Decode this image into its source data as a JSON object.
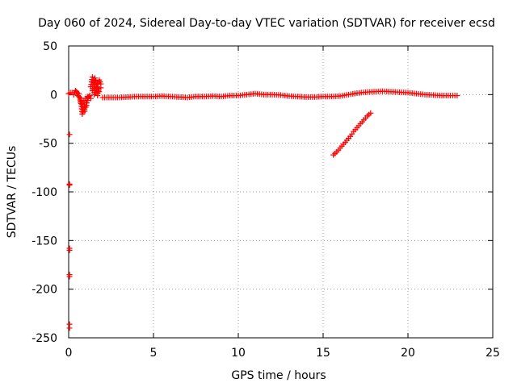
{
  "chart_data": {
    "type": "scatter",
    "title": "Day 060 of 2024, Sidereal Day-to-day VTEC variation (SDTVAR) for receiver ecsd",
    "xlabel": "GPS time / hours",
    "ylabel": "SDTVAR / TECUs",
    "xlim": [
      0,
      25
    ],
    "ylim": [
      -250,
      50
    ],
    "xticks": [
      0,
      5,
      10,
      15,
      20,
      25
    ],
    "yticks": [
      -250,
      -200,
      -150,
      -100,
      -50,
      0,
      50
    ],
    "xtick_labels": [
      "0",
      "5",
      "10",
      "15",
      "20",
      "25"
    ],
    "ytick_labels": [
      "-250",
      "-200",
      "-150",
      "-100",
      "-50",
      "0",
      "50"
    ],
    "grid": true,
    "marker": "+",
    "series_color": "#ff0000",
    "series": [
      {
        "name": "outliers",
        "points": [
          [
            0.05,
            -41
          ],
          [
            0.05,
            -92
          ],
          [
            0.05,
            -93
          ],
          [
            0.05,
            -158
          ],
          [
            0.05,
            -160
          ],
          [
            0.05,
            -185
          ],
          [
            0.05,
            -187
          ],
          [
            0.05,
            -236
          ],
          [
            0.05,
            -240
          ]
        ]
      },
      {
        "name": "early-scatter",
        "points": [
          [
            0.0,
            1
          ],
          [
            0.1,
            2
          ],
          [
            0.2,
            2
          ],
          [
            0.3,
            0
          ],
          [
            0.4,
            4
          ],
          [
            0.45,
            3
          ],
          [
            0.5,
            2
          ],
          [
            0.55,
            -1
          ],
          [
            0.6,
            1
          ],
          [
            0.65,
            -3
          ],
          [
            0.7,
            -8
          ],
          [
            0.75,
            -12
          ],
          [
            0.8,
            -20
          ],
          [
            0.85,
            -18
          ],
          [
            0.9,
            -15
          ],
          [
            0.95,
            -17
          ],
          [
            1.0,
            -13
          ],
          [
            1.05,
            -11
          ],
          [
            1.1,
            -6
          ],
          [
            1.15,
            -3
          ],
          [
            1.2,
            -2
          ],
          [
            1.25,
            -1
          ],
          [
            1.3,
            -4
          ],
          [
            1.4,
            18
          ],
          [
            1.45,
            15
          ],
          [
            1.5,
            12
          ],
          [
            1.55,
            17
          ],
          [
            1.6,
            14
          ],
          [
            1.65,
            10
          ],
          [
            1.7,
            8
          ],
          [
            1.75,
            6
          ],
          [
            1.8,
            3
          ],
          [
            1.5,
            6
          ],
          [
            1.6,
            2
          ],
          [
            1.7,
            12
          ],
          [
            1.8,
            15
          ],
          [
            1.9,
            11
          ],
          [
            1.9,
            7
          ],
          [
            1.5,
            0
          ],
          [
            1.4,
            4
          ],
          [
            1.3,
            8
          ],
          [
            1.7,
            -1
          ],
          [
            0.9,
            -6
          ],
          [
            1.0,
            -4
          ],
          [
            1.1,
            -2
          ],
          [
            0.8,
            -10
          ],
          [
            0.7,
            -4
          ],
          [
            0.6,
            -2
          ]
        ]
      },
      {
        "name": "main-track",
        "points": [
          [
            2.0,
            -3
          ],
          [
            2.5,
            -3
          ],
          [
            3.0,
            -3
          ],
          [
            3.5,
            -2.5
          ],
          [
            4.0,
            -2
          ],
          [
            4.5,
            -2
          ],
          [
            5.0,
            -2
          ],
          [
            5.5,
            -1.5
          ],
          [
            6.0,
            -2
          ],
          [
            6.5,
            -2.5
          ],
          [
            7.0,
            -3
          ],
          [
            7.5,
            -2
          ],
          [
            8.0,
            -2
          ],
          [
            8.5,
            -1.5
          ],
          [
            9.0,
            -2
          ],
          [
            9.5,
            -1
          ],
          [
            10.0,
            -1
          ],
          [
            10.5,
            0
          ],
          [
            11.0,
            1
          ],
          [
            11.5,
            0
          ],
          [
            12.0,
            0
          ],
          [
            12.5,
            -0.5
          ],
          [
            13.0,
            -1.5
          ],
          [
            13.5,
            -2
          ],
          [
            14.0,
            -2.5
          ],
          [
            14.5,
            -2.5
          ],
          [
            15.0,
            -2
          ],
          [
            15.5,
            -2
          ],
          [
            16.0,
            -1.5
          ],
          [
            16.5,
            0
          ],
          [
            17.0,
            1.5
          ],
          [
            17.5,
            2.5
          ],
          [
            18.0,
            3
          ],
          [
            18.5,
            3.5
          ],
          [
            19.0,
            3
          ],
          [
            19.5,
            2.5
          ],
          [
            20.0,
            2
          ],
          [
            20.5,
            1
          ],
          [
            21.0,
            0
          ],
          [
            21.5,
            -0.5
          ],
          [
            22.0,
            -1
          ],
          [
            22.5,
            -1
          ],
          [
            22.9,
            -1
          ]
        ]
      },
      {
        "name": "descending-arc",
        "points": [
          [
            15.6,
            -62
          ],
          [
            15.8,
            -59
          ],
          [
            16.0,
            -55
          ],
          [
            16.2,
            -51
          ],
          [
            16.4,
            -47
          ],
          [
            16.6,
            -43
          ],
          [
            16.8,
            -38
          ],
          [
            17.0,
            -34
          ],
          [
            17.2,
            -30
          ],
          [
            17.4,
            -26
          ],
          [
            17.6,
            -22
          ],
          [
            17.8,
            -19
          ]
        ]
      }
    ]
  }
}
